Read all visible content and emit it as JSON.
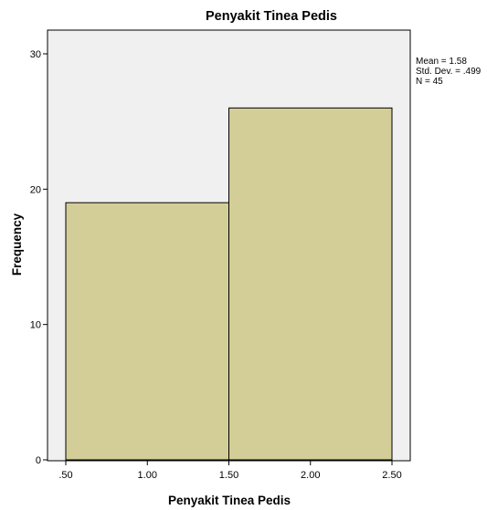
{
  "chart_data": {
    "type": "bar",
    "title": "Penyakit Tinea Pedis",
    "xlabel": "Penyakit Tinea Pedis",
    "ylabel": "Frequency",
    "bins": [
      {
        "start": 0.5,
        "end": 1.5,
        "value": 19
      },
      {
        "start": 1.5,
        "end": 2.5,
        "value": 26
      }
    ],
    "x_ticks": [
      {
        "value": 0.5,
        "label": ".50"
      },
      {
        "value": 1.0,
        "label": "1.00"
      },
      {
        "value": 1.5,
        "label": "1.50"
      },
      {
        "value": 2.0,
        "label": "2.00"
      },
      {
        "value": 2.5,
        "label": "2.50"
      }
    ],
    "y_ticks": [
      {
        "value": 0,
        "label": "0"
      },
      {
        "value": 10,
        "label": "10"
      },
      {
        "value": 20,
        "label": "20"
      },
      {
        "value": 30,
        "label": "30"
      }
    ],
    "xlim": [
      0.5,
      2.5
    ],
    "ylim": [
      0,
      30
    ],
    "grid": false,
    "bar_color": "#d3ce97",
    "plot_background": "#f0f0f0",
    "stats": [
      "Mean = 1.58",
      "Std. Dev. = .499",
      "N = 45"
    ]
  }
}
